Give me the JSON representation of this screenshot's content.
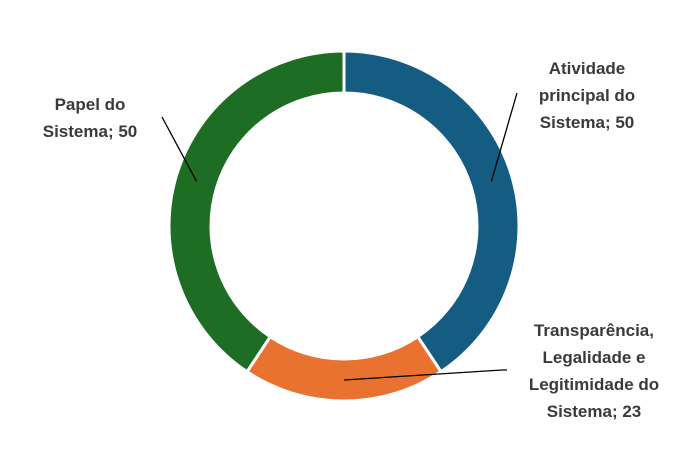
{
  "chart_data": {
    "type": "pie",
    "variant": "donut",
    "title": "",
    "slices": [
      {
        "label": "Atividade principal do Sistema; 50",
        "value": 50,
        "color": "#145c82"
      },
      {
        "label": "Transparência, Legalidade e Legitimidade do Sistema; 23",
        "value": 23,
        "color": "#e97231"
      },
      {
        "label": "Papel do Sistema; 50",
        "value": 50,
        "color": "#1d6e24"
      }
    ]
  }
}
